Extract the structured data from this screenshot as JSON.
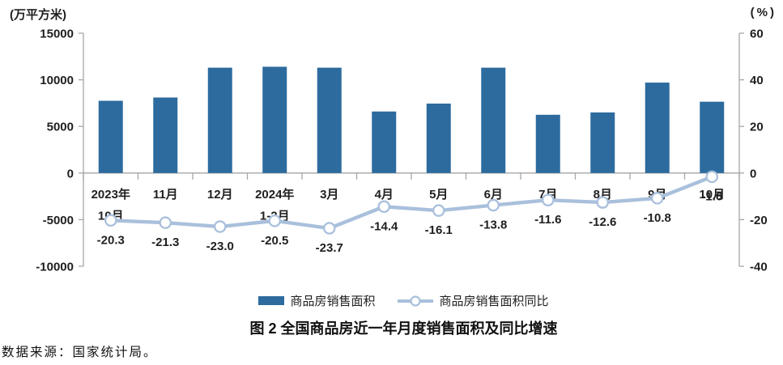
{
  "chart_data": {
    "type": "combo",
    "categories": [
      [
        "2023年",
        "10月"
      ],
      [
        "11月"
      ],
      [
        "12月"
      ],
      [
        "2024年",
        "1-2月"
      ],
      [
        "3月"
      ],
      [
        "4月"
      ],
      [
        "5月"
      ],
      [
        "6月"
      ],
      [
        "7月"
      ],
      [
        "8月"
      ],
      [
        "9月"
      ],
      [
        "10月"
      ]
    ],
    "series": [
      {
        "name": "商品房销售面积",
        "type": "bar",
        "axis": "left",
        "values": [
          7750,
          8100,
          11300,
          11400,
          11300,
          6600,
          7450,
          11300,
          6250,
          6500,
          9700,
          7650
        ]
      },
      {
        "name": "商品房销售面积同比",
        "type": "line",
        "axis": "right",
        "values": [
          -20.3,
          -21.3,
          -23.0,
          -20.5,
          -23.7,
          -14.4,
          -16.1,
          -13.8,
          -11.6,
          -12.6,
          -10.8,
          -1.6
        ],
        "data_labels": [
          "-20.3",
          "-21.3",
          "-23.0",
          "-20.5",
          "-23.7",
          "-14.4",
          "-16.1",
          "-13.8",
          "-11.6",
          "-12.6",
          "-10.8",
          "-1.6"
        ]
      }
    ],
    "left_axis": {
      "unit": "(万平方米)",
      "ticks": [
        15000,
        10000,
        5000,
        0,
        -5000,
        -10000
      ],
      "range": [
        -10000,
        15000
      ]
    },
    "right_axis": {
      "unit": "(%)",
      "ticks": [
        60,
        40,
        20,
        0,
        -20,
        -40
      ],
      "range": [
        -40,
        60
      ]
    },
    "title": "图 2 全国商品房近一年月度销售面积及同比增速",
    "grid": false,
    "legend_position": "bottom"
  },
  "source_note": "数据来源：国家统计局。",
  "colors": {
    "bar": "#2D6B9E",
    "line": "#A9C0DC",
    "axis": "#A6A6A6",
    "text": "#1F1F1F"
  }
}
